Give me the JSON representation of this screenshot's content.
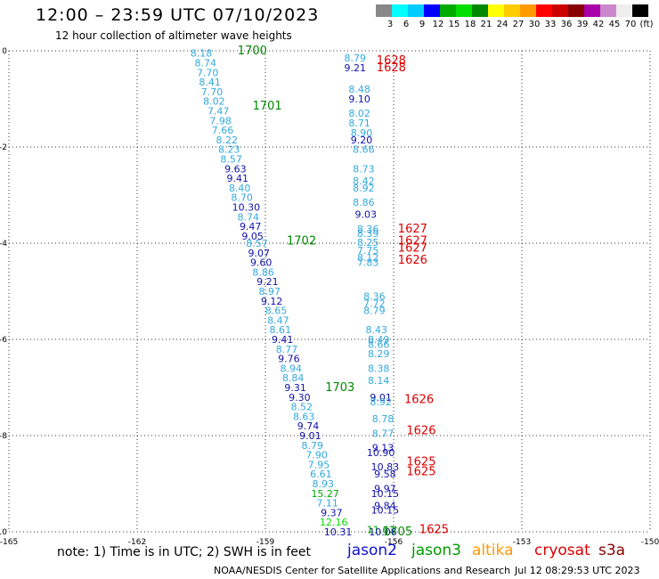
{
  "title": "12:00 – 23:59 UTC 07/10/2023",
  "subtitle": "12 hour collection of altimeter wave heights",
  "note": "note: 1) Time is in UTC; 2) SWH is in feet",
  "credit": "NOAA/NESDIS Center for Satellite Applications and Research",
  "timestamp": "Jul 12 08:29:53 UTC 2023",
  "satellites": [
    {
      "name": "jason2",
      "color": "#1111cc"
    },
    {
      "name": "jason3",
      "color": "#009900"
    },
    {
      "name": "altika",
      "color": "#ff9900"
    },
    {
      "name": "cryosat",
      "color": "#dd0000"
    },
    {
      "name": "s3a",
      "color": "#880000"
    }
  ],
  "colorbar": {
    "colors": [
      "#888888",
      "#00ffff",
      "#00ccff",
      "#0000ff",
      "#00aa00",
      "#00dd00",
      "#008800",
      "#ffff00",
      "#ffcc00",
      "#ff9900",
      "#ff0000",
      "#cc0000",
      "#880000",
      "#aa00aa",
      "#cc88cc",
      "#eeeeee",
      "#000000"
    ],
    "labels": [
      "3",
      "6",
      "9",
      "12",
      "15",
      "18",
      "21",
      "24",
      "27",
      "30",
      "33",
      "36",
      "39",
      "42",
      "45",
      "70",
      "(ft)"
    ]
  },
  "chart_data": {
    "type": "scatter",
    "xlim": [
      -165,
      -150
    ],
    "ylim": [
      -10,
      0
    ],
    "x_ticks": [
      -165,
      -162,
      -159,
      -156,
      -153,
      -150
    ],
    "y_ticks": [
      0,
      -2,
      -4,
      -6,
      -8,
      -10
    ],
    "grid": true,
    "points": [
      {
        "x": -160.5,
        "y": -0.05,
        "label": "8.18",
        "color": "#33aadd"
      },
      {
        "x": -160.4,
        "y": -0.25,
        "label": "8.74",
        "color": "#33aadd"
      },
      {
        "x": -160.35,
        "y": -0.45,
        "label": "7.70",
        "color": "#33aadd"
      },
      {
        "x": -160.3,
        "y": -0.65,
        "label": "8.41",
        "color": "#33aadd"
      },
      {
        "x": -160.25,
        "y": -0.85,
        "label": "7.70",
        "color": "#33aadd"
      },
      {
        "x": -160.2,
        "y": -1.05,
        "label": "8.02",
        "color": "#33aadd"
      },
      {
        "x": -160.1,
        "y": -1.25,
        "label": "7.47",
        "color": "#33aadd"
      },
      {
        "x": -160.05,
        "y": -1.45,
        "label": "7.98",
        "color": "#33aadd"
      },
      {
        "x": -160.0,
        "y": -1.65,
        "label": "7.66",
        "color": "#33aadd"
      },
      {
        "x": -159.9,
        "y": -1.85,
        "label": "8.22",
        "color": "#33aadd"
      },
      {
        "x": -159.85,
        "y": -2.05,
        "label": "8.23",
        "color": "#33aadd"
      },
      {
        "x": -159.8,
        "y": -2.25,
        "label": "8.57",
        "color": "#33aadd"
      },
      {
        "x": -159.7,
        "y": -2.45,
        "label": "9.63",
        "color": "#1111aa"
      },
      {
        "x": -159.65,
        "y": -2.65,
        "label": "9.41",
        "color": "#1111aa"
      },
      {
        "x": -159.6,
        "y": -2.85,
        "label": "8.40",
        "color": "#33aadd"
      },
      {
        "x": -159.55,
        "y": -3.05,
        "label": "8.70",
        "color": "#33aadd"
      },
      {
        "x": -159.45,
        "y": -3.25,
        "label": "10.30",
        "color": "#1111aa"
      },
      {
        "x": -159.4,
        "y": -3.45,
        "label": "8.74",
        "color": "#33aadd"
      },
      {
        "x": -159.35,
        "y": -3.65,
        "label": "9.47",
        "color": "#1111aa"
      },
      {
        "x": -159.3,
        "y": -3.85,
        "label": "9.05",
        "color": "#1111aa"
      },
      {
        "x": -159.2,
        "y": -4.0,
        "label": "8.57",
        "color": "#33aadd"
      },
      {
        "x": -159.15,
        "y": -4.2,
        "label": "9.07",
        "color": "#1111aa"
      },
      {
        "x": -159.1,
        "y": -4.4,
        "label": "9.60",
        "color": "#1111aa"
      },
      {
        "x": -159.05,
        "y": -4.6,
        "label": "8.86",
        "color": "#33aadd"
      },
      {
        "x": -158.95,
        "y": -4.8,
        "label": "9.21",
        "color": "#1111aa"
      },
      {
        "x": -158.9,
        "y": -5.0,
        "label": "8.97",
        "color": "#33aadd"
      },
      {
        "x": -158.85,
        "y": -5.2,
        "label": "9.12",
        "color": "#1111aa"
      },
      {
        "x": -158.75,
        "y": -5.4,
        "label": "8.65",
        "color": "#33aadd"
      },
      {
        "x": -158.7,
        "y": -5.6,
        "label": "8.47",
        "color": "#33aadd"
      },
      {
        "x": -158.65,
        "y": -5.8,
        "label": "8.61",
        "color": "#33aadd"
      },
      {
        "x": -158.6,
        "y": -6.0,
        "label": "9.41",
        "color": "#1111aa"
      },
      {
        "x": -158.5,
        "y": -6.2,
        "label": "8.77",
        "color": "#33aadd"
      },
      {
        "x": -158.45,
        "y": -6.4,
        "label": "9.76",
        "color": "#1111aa"
      },
      {
        "x": -158.4,
        "y": -6.6,
        "label": "8.94",
        "color": "#33aadd"
      },
      {
        "x": -158.35,
        "y": -6.8,
        "label": "8.84",
        "color": "#33aadd"
      },
      {
        "x": -158.3,
        "y": -7.0,
        "label": "9.31",
        "color": "#1111aa"
      },
      {
        "x": -158.2,
        "y": -7.2,
        "label": "9.30",
        "color": "#1111aa"
      },
      {
        "x": -158.15,
        "y": -7.4,
        "label": "8.52",
        "color": "#33aadd"
      },
      {
        "x": -158.1,
        "y": -7.6,
        "label": "8.63",
        "color": "#33aadd"
      },
      {
        "x": -158.0,
        "y": -7.8,
        "label": "9.74",
        "color": "#1111aa"
      },
      {
        "x": -157.95,
        "y": -8.0,
        "label": "9.01",
        "color": "#1111aa"
      },
      {
        "x": -157.9,
        "y": -8.2,
        "label": "8.79",
        "color": "#33aadd"
      },
      {
        "x": -157.8,
        "y": -8.4,
        "label": "7.90",
        "color": "#33aadd"
      },
      {
        "x": -157.75,
        "y": -8.6,
        "label": "7.95",
        "color": "#33aadd"
      },
      {
        "x": -157.7,
        "y": -8.8,
        "label": "6.61",
        "color": "#33aadd"
      },
      {
        "x": -157.65,
        "y": -9.0,
        "label": "8.93",
        "color": "#33aadd"
      },
      {
        "x": -157.6,
        "y": -9.2,
        "label": "15.27",
        "color": "#00aa00"
      },
      {
        "x": -157.55,
        "y": -9.4,
        "label": "7.11",
        "color": "#33aadd"
      },
      {
        "x": -157.45,
        "y": -9.6,
        "label": "9.37",
        "color": "#1111aa"
      },
      {
        "x": -157.4,
        "y": -9.8,
        "label": "12.16",
        "color": "#00dd00"
      },
      {
        "x": -157.3,
        "y": -10.0,
        "label": "10.31",
        "color": "#1111aa"
      },
      {
        "x": -156.9,
        "y": -0.15,
        "label": "8.79",
        "color": "#33aadd"
      },
      {
        "x": -156.9,
        "y": -0.35,
        "label": "9.21",
        "color": "#1111aa"
      },
      {
        "x": -156.8,
        "y": -0.8,
        "label": "8.48",
        "color": "#33aadd"
      },
      {
        "x": -156.8,
        "y": -1.0,
        "label": "9.10",
        "color": "#1111aa"
      },
      {
        "x": -156.8,
        "y": -1.3,
        "label": "8.02",
        "color": "#33aadd"
      },
      {
        "x": -156.8,
        "y": -1.5,
        "label": "8.71",
        "color": "#33aadd"
      },
      {
        "x": -156.75,
        "y": -1.7,
        "label": "8.90",
        "color": "#33aadd"
      },
      {
        "x": -156.75,
        "y": -1.85,
        "label": "9.20",
        "color": "#1111aa"
      },
      {
        "x": -156.7,
        "y": -2.05,
        "label": "8.66",
        "color": "#33aadd"
      },
      {
        "x": -156.7,
        "y": -2.45,
        "label": "8.73",
        "color": "#33aadd"
      },
      {
        "x": -156.7,
        "y": -2.7,
        "label": "8.42",
        "color": "#33aadd"
      },
      {
        "x": -156.7,
        "y": -2.85,
        "label": "8.92",
        "color": "#33aadd"
      },
      {
        "x": -156.7,
        "y": -3.15,
        "label": "8.86",
        "color": "#33aadd"
      },
      {
        "x": -156.65,
        "y": -3.4,
        "label": "9.03",
        "color": "#1111aa"
      },
      {
        "x": -156.6,
        "y": -3.7,
        "label": "8.36",
        "color": "#33aadd"
      },
      {
        "x": -156.6,
        "y": -3.8,
        "label": "8.39",
        "color": "#33aadd"
      },
      {
        "x": -156.6,
        "y": -3.98,
        "label": "8.25",
        "color": "#33aadd"
      },
      {
        "x": -156.6,
        "y": -4.15,
        "label": "7.75",
        "color": "#33aadd"
      },
      {
        "x": -156.6,
        "y": -4.3,
        "label": "8.12",
        "color": "#33aadd"
      },
      {
        "x": -156.6,
        "y": -4.4,
        "label": "7.83",
        "color": "#33aadd"
      },
      {
        "x": -156.45,
        "y": -5.1,
        "label": "8.36",
        "color": "#33aadd"
      },
      {
        "x": -156.45,
        "y": -5.25,
        "label": "7.72",
        "color": "#33aadd"
      },
      {
        "x": -156.45,
        "y": -5.4,
        "label": "8.79",
        "color": "#33aadd"
      },
      {
        "x": -156.4,
        "y": -5.8,
        "label": "8.43",
        "color": "#33aadd"
      },
      {
        "x": -156.35,
        "y": -6.0,
        "label": "8.49",
        "color": "#33aadd"
      },
      {
        "x": -156.35,
        "y": -6.1,
        "label": "8.66",
        "color": "#33aadd"
      },
      {
        "x": -156.35,
        "y": -6.3,
        "label": "8.29",
        "color": "#33aadd"
      },
      {
        "x": -156.35,
        "y": -6.6,
        "label": "8.38",
        "color": "#33aadd"
      },
      {
        "x": -156.35,
        "y": -6.85,
        "label": "8.14",
        "color": "#33aadd"
      },
      {
        "x": -156.3,
        "y": -7.2,
        "label": "9.01",
        "color": "#1111aa"
      },
      {
        "x": -156.3,
        "y": -7.3,
        "label": "8.92",
        "color": "#33aadd"
      },
      {
        "x": -156.25,
        "y": -7.65,
        "label": "8.78",
        "color": "#33aadd"
      },
      {
        "x": -156.25,
        "y": -7.95,
        "label": "8.77",
        "color": "#33aadd"
      },
      {
        "x": -156.25,
        "y": -8.25,
        "label": "9.13",
        "color": "#1111aa"
      },
      {
        "x": -156.3,
        "y": -8.35,
        "label": "10.90",
        "color": "#1111aa"
      },
      {
        "x": -156.2,
        "y": -8.65,
        "label": "10.83",
        "color": "#1111aa"
      },
      {
        "x": -156.2,
        "y": -8.8,
        "label": "9.58",
        "color": "#1111aa"
      },
      {
        "x": -156.2,
        "y": -9.1,
        "label": "9.97",
        "color": "#1111aa"
      },
      {
        "x": -156.2,
        "y": -9.2,
        "label": "10.15",
        "color": "#1111aa"
      },
      {
        "x": -156.2,
        "y": -9.45,
        "label": "9.84",
        "color": "#1111aa"
      },
      {
        "x": -156.2,
        "y": -9.55,
        "label": "10.15",
        "color": "#1111aa"
      },
      {
        "x": -156.3,
        "y": -9.95,
        "label": "11.63",
        "color": "#00aa00"
      },
      {
        "x": -156.25,
        "y": -10.0,
        "label": "10.06",
        "color": "#1111aa"
      }
    ],
    "time_labels": [
      {
        "x": -159.65,
        "y": -0.0,
        "label": "1700",
        "color": "#008800"
      },
      {
        "x": -159.3,
        "y": -1.15,
        "label": "1701",
        "color": "#008800"
      },
      {
        "x": -158.5,
        "y": -3.95,
        "label": "1702",
        "color": "#008800"
      },
      {
        "x": -157.6,
        "y": -7.0,
        "label": "1703",
        "color": "#008800"
      },
      {
        "x": -156.25,
        "y": -10.0,
        "label": "1705",
        "color": "#008800"
      },
      {
        "x": -156.4,
        "y": -0.2,
        "label": "1628",
        "color": "#dd0000"
      },
      {
        "x": -156.4,
        "y": -0.35,
        "label": "1628",
        "color": "#dd0000"
      },
      {
        "x": -155.9,
        "y": -3.7,
        "label": "1627",
        "color": "#dd0000"
      },
      {
        "x": -155.9,
        "y": -3.95,
        "label": "1627",
        "color": "#dd0000"
      },
      {
        "x": -155.9,
        "y": -4.1,
        "label": "1627",
        "color": "#dd0000"
      },
      {
        "x": -155.9,
        "y": -4.35,
        "label": "1626",
        "color": "#dd0000"
      },
      {
        "x": -155.75,
        "y": -7.25,
        "label": "1626",
        "color": "#dd0000"
      },
      {
        "x": -155.7,
        "y": -7.9,
        "label": "1626",
        "color": "#dd0000"
      },
      {
        "x": -155.7,
        "y": -8.55,
        "label": "1625",
        "color": "#dd0000"
      },
      {
        "x": -155.7,
        "y": -8.75,
        "label": "1625",
        "color": "#dd0000"
      },
      {
        "x": -155.4,
        "y": -9.95,
        "label": "1625",
        "color": "#dd0000"
      }
    ]
  }
}
